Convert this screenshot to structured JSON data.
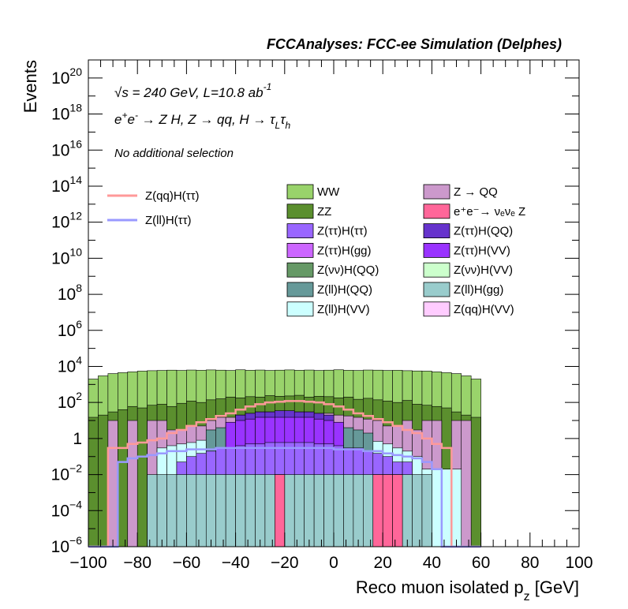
{
  "header": "FCCAnalyses: FCC-ee Simulation (Delphes)",
  "text": {
    "energy": "√s = 240 GeV, L=10.8 ab",
    "energy_exp": "-1",
    "process": "e⁺e⁻ → Z H, Z → qq, H → τ_L τ_h",
    "selection": "No additional selection"
  },
  "chart_data": {
    "type": "histogram",
    "xlabel": "Reco muon isolated p_z [GeV]",
    "ylabel": "Events",
    "xlim": [
      -100,
      100
    ],
    "ylim": [
      1e-06,
      1e+21
    ],
    "log_y": true,
    "bin_width": 4,
    "x_ticks": [
      -100,
      -80,
      -60,
      -40,
      -20,
      0,
      20,
      40,
      60,
      80,
      100
    ],
    "y_ticks": [
      {
        "value": 1e-06,
        "label": "10^-6"
      },
      {
        "value": 0.0001,
        "label": "10^-4"
      },
      {
        "value": 0.01,
        "label": "10^-2"
      },
      {
        "value": 1,
        "label": "1"
      },
      {
        "value": 100.0,
        "label": "10^2"
      },
      {
        "value": 10000.0,
        "label": "10^4"
      },
      {
        "value": 1000000.0,
        "label": "10^6"
      },
      {
        "value": 100000000.0,
        "label": "10^8"
      },
      {
        "value": 10000000000.0,
        "label": "10^10"
      },
      {
        "value": 1000000000000.0,
        "label": "10^12"
      },
      {
        "value": 100000000000000.0,
        "label": "10^14"
      },
      {
        "value": 1e+16,
        "label": "10^16"
      },
      {
        "value": 1e+18,
        "label": "10^18"
      },
      {
        "value": 1e+20,
        "label": "10^20"
      }
    ],
    "stack_envelopes": [
      {
        "name": "WW",
        "color": "#99d36b",
        "values": [
          2000,
          3000,
          4000,
          4500,
          5000,
          5500,
          5800,
          6000,
          6200,
          6000,
          6300,
          6100,
          6400,
          6200,
          6000,
          6500,
          6100,
          6300,
          6000,
          6200,
          6400,
          6100,
          6300,
          6000,
          6200,
          6500,
          6100,
          6000,
          6300,
          6200,
          6000,
          6100,
          5800,
          5600,
          5500,
          5000,
          4500,
          4000,
          3000,
          2000
        ]
      },
      {
        "name": "ZZ",
        "color": "#5b8f2e",
        "values": [
          15,
          20,
          30,
          40,
          60,
          50,
          70,
          80,
          60,
          90,
          120,
          100,
          140,
          160,
          200,
          180,
          210,
          200,
          240,
          220,
          230,
          250,
          200,
          220,
          210,
          180,
          200,
          150,
          170,
          140,
          120,
          100,
          130,
          80,
          70,
          60,
          50,
          30,
          20,
          15
        ]
      },
      {
        "name": "Z → QQ",
        "color": "#cc99cc",
        "values": [
          1e-06,
          1e-06,
          10,
          1e-06,
          10,
          1e-06,
          10,
          10,
          3,
          3,
          5,
          5,
          10,
          15,
          15,
          20,
          25,
          30,
          30,
          30,
          30,
          30,
          30,
          25,
          25,
          20,
          18,
          15,
          12,
          10,
          5,
          5,
          10,
          3,
          10,
          10,
          1e-06,
          10,
          10,
          1e-06
        ]
      },
      {
        "name": "e⁺e⁻ → νₑνₑ Z",
        "color": "#ff6699",
        "values": [
          1e-06,
          1e-06,
          1e-06,
          1e-06,
          1e-06,
          1e-06,
          1e-06,
          1e-06,
          1e-06,
          1e-06,
          1e-06,
          1e-06,
          1e-06,
          1e-06,
          1e-06,
          1e-06,
          1e-06,
          1e-06,
          1e-06,
          0.01,
          1e-06,
          1e-06,
          1e-06,
          1e-06,
          1e-06,
          1e-06,
          1e-06,
          1e-06,
          1e-06,
          0.01,
          0.01,
          0.01,
          1e-06,
          1e-06,
          1e-06,
          1e-06,
          1e-06,
          1e-06,
          1e-06,
          1e-06
        ]
      },
      {
        "name": "Z(ττ)H(ττ)",
        "color": "#9966ff",
        "values": [
          1e-06,
          1e-06,
          1e-06,
          1e-06,
          1e-06,
          1e-06,
          1e-06,
          1e-06,
          1e-06,
          0.05,
          0.1,
          0.15,
          0.2,
          0.3,
          0.3,
          0.4,
          0.5,
          0.5,
          0.6,
          0.6,
          0.6,
          0.6,
          0.6,
          0.5,
          0.5,
          0.4,
          0.3,
          0.3,
          0.2,
          0.15,
          0.1,
          0.05,
          0.05,
          1e-06,
          1e-06,
          1e-06,
          1e-06,
          1e-06,
          1e-06,
          1e-06
        ]
      },
      {
        "name": "Z(ll)H(gg)",
        "color": "#99cccc",
        "values": [
          1e-06,
          1e-06,
          1e-06,
          1e-06,
          1e-06,
          1e-06,
          0.01,
          0.01,
          0.01,
          0.01,
          0.01,
          0.01,
          0.01,
          0.01,
          0.01,
          0.01,
          0.01,
          0.01,
          0.01,
          0.01,
          0.01,
          0.01,
          0.01,
          0.01,
          0.01,
          0.01,
          0.01,
          0.01,
          0.01,
          0.01,
          0.01,
          0.01,
          0.01,
          0.01,
          0.01,
          1e-06,
          1e-06,
          1e-06,
          1e-06,
          1e-06
        ]
      },
      {
        "name": "Z(ll)H(VV)",
        "color": "#ccffff",
        "values": [
          1e-06,
          1e-06,
          1e-06,
          1e-06,
          1e-06,
          1e-06,
          1e-06,
          0.3,
          0.4,
          0.5,
          0.6,
          0.8,
          1.2,
          1.5,
          1.8,
          2,
          2.2,
          2.5,
          2.5,
          2.5,
          2.5,
          2.5,
          2.5,
          2.2,
          2,
          1.8,
          1.5,
          1.2,
          0.8,
          0.7,
          0.5,
          0.3,
          0.2,
          0.1,
          0.02,
          0.02,
          0.02,
          0.02,
          1e-06,
          1e-06
        ]
      },
      {
        "name": "Z(νν)H(QQ)",
        "color": "#669966",
        "values": [
          1e-06,
          1e-06,
          1e-06,
          1e-06,
          1e-06,
          1e-06,
          1e-06,
          1e-06,
          1e-06,
          1e-06,
          1e-06,
          1e-06,
          1e-06,
          0.02,
          1e-06,
          1e-06,
          0.02,
          0.02,
          0.02,
          0.02,
          0.02,
          0.02,
          1e-06,
          1e-06,
          1e-06,
          1e-06,
          1e-06,
          1e-06,
          1e-06,
          1e-06,
          1e-06,
          1e-06,
          1e-06,
          1e-06,
          1e-06,
          1e-06,
          1e-06,
          1e-06,
          1e-06,
          1e-06
        ]
      },
      {
        "name": "Z(ll)H(QQ)",
        "color": "#669999",
        "values": [
          1e-06,
          1e-06,
          1e-06,
          1e-06,
          1e-06,
          1e-06,
          1e-06,
          1e-06,
          1e-06,
          1e-06,
          1e-06,
          1e-06,
          3,
          4,
          5,
          6,
          7,
          7,
          8,
          8,
          8,
          8,
          7,
          7,
          6,
          5,
          4,
          3,
          2,
          1e-06,
          1e-06,
          1e-06,
          1e-06,
          1e-06,
          1e-06,
          1e-06,
          1e-06,
          1e-06,
          1e-06,
          1e-06
        ]
      },
      {
        "name": "Z(ττ)H(QQ)",
        "color": "#6633cc",
        "values": [
          1e-06,
          1e-06,
          1e-06,
          1e-06,
          1e-06,
          1e-06,
          1e-06,
          1e-06,
          1e-06,
          1e-06,
          1e-06,
          1e-06,
          1e-06,
          1e-06,
          1e-06,
          20,
          25,
          30,
          30,
          35,
          35,
          30,
          30,
          25,
          20,
          1e-06,
          1e-06,
          1e-06,
          1e-06,
          1e-06,
          1e-06,
          1e-06,
          1e-06,
          1e-06,
          1e-06,
          1e-06,
          1e-06,
          1e-06,
          1e-06,
          1e-06
        ]
      },
      {
        "name": "Z(ττ)H(VV)",
        "color": "#9933ff",
        "values": [
          1e-06,
          1e-06,
          1e-06,
          1e-06,
          1e-06,
          1e-06,
          1e-06,
          1e-06,
          1e-06,
          1e-06,
          1e-06,
          1e-06,
          1e-06,
          1e-06,
          8,
          10,
          12,
          15,
          15,
          15,
          15,
          15,
          15,
          12,
          10,
          8,
          1e-06,
          1e-06,
          1e-06,
          1e-06,
          1e-06,
          1e-06,
          1e-06,
          1e-06,
          1e-06,
          1e-06,
          1e-06,
          1e-06,
          1e-06,
          1e-06
        ]
      },
      {
        "name": "Z(ττ)H(gg)",
        "color": "#cc66ff",
        "values": [
          1e-06,
          1e-06,
          1e-06,
          1e-06,
          1e-06,
          1e-06,
          1e-06,
          1e-06,
          1e-06,
          1e-06,
          1e-06,
          1e-06,
          1e-06,
          1e-06,
          1e-06,
          1e-06,
          1e-06,
          1e-06,
          1e-06,
          1e-06,
          1e-06,
          1e-06,
          1e-06,
          1e-06,
          1e-06,
          1e-06,
          1e-06,
          1e-06,
          1e-06,
          1e-06,
          1e-06,
          1e-06,
          1e-06,
          1e-06,
          1e-06,
          1e-06,
          1e-06,
          1e-06,
          1e-06,
          1e-06
        ]
      },
      {
        "name": "Z(νν)H(VV)",
        "color": "#ccffcc",
        "values": [
          1e-06,
          1e-06,
          1e-06,
          1e-06,
          1e-06,
          1e-06,
          1e-06,
          1e-06,
          1e-06,
          1e-06,
          1e-06,
          1e-06,
          1e-06,
          1e-06,
          1e-06,
          1e-06,
          1e-06,
          1e-06,
          1e-06,
          1e-06,
          1e-06,
          1e-06,
          1e-06,
          1e-06,
          1e-06,
          1e-06,
          1e-06,
          1e-06,
          1e-06,
          1e-06,
          1e-06,
          1e-06,
          1e-06,
          1e-06,
          1e-06,
          1e-06,
          1e-06,
          1e-06,
          1e-06,
          1e-06
        ]
      },
      {
        "name": "Z(qq)H(VV)",
        "color": "#ffccff",
        "values": [
          1e-06,
          1e-06,
          1e-06,
          1e-06,
          1e-06,
          1e-06,
          1e-06,
          1e-06,
          1e-06,
          1e-06,
          1e-06,
          1e-06,
          1e-06,
          1e-06,
          1e-06,
          1e-06,
          1e-06,
          1e-06,
          1e-06,
          1e-06,
          1e-06,
          1e-06,
          1e-06,
          1e-06,
          1e-06,
          1e-06,
          1e-06,
          1e-06,
          1e-06,
          1e-06,
          1e-06,
          1e-06,
          1e-06,
          1e-06,
          1e-06,
          1e-06,
          1e-06,
          1e-06,
          1e-06,
          1e-06
        ]
      }
    ],
    "draw_order": [
      0,
      1,
      2,
      6,
      8,
      9,
      10,
      4,
      5,
      3
    ],
    "signals": [
      {
        "name": "Z(qq)H(ττ)",
        "color": "#ff9999",
        "values": [
          1e-06,
          1e-06,
          0.3,
          0.3,
          0.5,
          0.6,
          0.8,
          1,
          2,
          3,
          5,
          8,
          12,
          18,
          25,
          40,
          60,
          80,
          100,
          110,
          120,
          120,
          110,
          100,
          80,
          60,
          40,
          25,
          18,
          12,
          8,
          5,
          3,
          2,
          1,
          0.5,
          0.3,
          1e-06,
          1e-06,
          1e-06
        ]
      },
      {
        "name": "Z(ll)H(ττ)",
        "color": "#9999ff",
        "values": [
          1e-06,
          1e-06,
          1e-06,
          0.05,
          0.08,
          0.1,
          0.12,
          0.15,
          0.2,
          0.2,
          0.25,
          0.25,
          0.25,
          0.3,
          0.3,
          0.3,
          0.3,
          0.3,
          0.3,
          0.3,
          0.3,
          0.3,
          0.3,
          0.3,
          0.3,
          0.25,
          0.25,
          0.25,
          0.2,
          0.2,
          0.15,
          0.12,
          0.1,
          0.08,
          0.05,
          0.02,
          1e-06,
          1e-06,
          1e-06,
          1e-06
        ]
      }
    ],
    "legend_left": [
      {
        "name": "Z(qq)H(ττ)",
        "color": "#ff9999"
      },
      {
        "name": "Z(ll)H(ττ)",
        "color": "#9999ff"
      }
    ],
    "legend_col1": [
      {
        "name": "WW",
        "color": "#99d36b"
      },
      {
        "name": "ZZ",
        "color": "#5b8f2e"
      },
      {
        "name": "Z(ττ)H(ττ)",
        "color": "#9966ff"
      },
      {
        "name": "Z(ττ)H(gg)",
        "color": "#cc66ff"
      },
      {
        "name": "Z(νν)H(QQ)",
        "color": "#669966"
      },
      {
        "name": "Z(ll)H(QQ)",
        "color": "#669999"
      },
      {
        "name": "Z(ll)H(VV)",
        "color": "#ccffff"
      }
    ],
    "legend_col2": [
      {
        "name": "Z → QQ",
        "color": "#cc99cc"
      },
      {
        "name": "e⁺e⁻→ νₑνₑ Z",
        "color": "#ff6699"
      },
      {
        "name": "Z(ττ)H(QQ)",
        "color": "#6633cc"
      },
      {
        "name": "Z(ττ)H(VV)",
        "color": "#9933ff"
      },
      {
        "name": "Z(νν)H(VV)",
        "color": "#ccffcc"
      },
      {
        "name": "Z(ll)H(gg)",
        "color": "#99cccc"
      },
      {
        "name": "Z(qq)H(VV)",
        "color": "#ffccff"
      }
    ]
  }
}
